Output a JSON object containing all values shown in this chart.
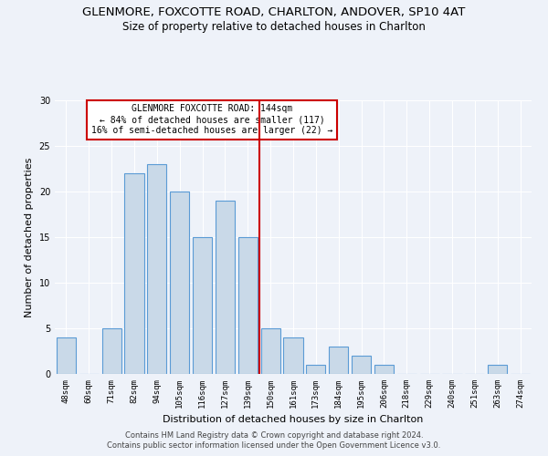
{
  "title1": "GLENMORE, FOXCOTTE ROAD, CHARLTON, ANDOVER, SP10 4AT",
  "title2": "Size of property relative to detached houses in Charlton",
  "xlabel": "Distribution of detached houses by size in Charlton",
  "ylabel": "Number of detached properties",
  "categories": [
    "48sqm",
    "60sqm",
    "71sqm",
    "82sqm",
    "94sqm",
    "105sqm",
    "116sqm",
    "127sqm",
    "139sqm",
    "150sqm",
    "161sqm",
    "173sqm",
    "184sqm",
    "195sqm",
    "206sqm",
    "218sqm",
    "229sqm",
    "240sqm",
    "251sqm",
    "263sqm",
    "274sqm"
  ],
  "values": [
    4,
    0,
    5,
    22,
    23,
    20,
    15,
    19,
    15,
    5,
    4,
    1,
    3,
    2,
    1,
    0,
    0,
    0,
    0,
    1,
    0
  ],
  "bar_color": "#c9d9e8",
  "bar_edge_color": "#5b9bd5",
  "vline_x": 8.5,
  "vline_color": "#cc0000",
  "annotation_text": "GLENMORE FOXCOTTE ROAD: 144sqm\n← 84% of detached houses are smaller (117)\n16% of semi-detached houses are larger (22) →",
  "annotation_box_color": "#ffffff",
  "annotation_box_edge": "#cc0000",
  "ylim": [
    0,
    30
  ],
  "yticks": [
    0,
    5,
    10,
    15,
    20,
    25,
    30
  ],
  "footer1": "Contains HM Land Registry data © Crown copyright and database right 2024.",
  "footer2": "Contains public sector information licensed under the Open Government Licence v3.0.",
  "bg_color": "#eef2f9",
  "plot_bg_color": "#eef2f9",
  "title1_fontsize": 9.5,
  "title2_fontsize": 8.5,
  "xlabel_fontsize": 8,
  "ylabel_fontsize": 8,
  "annot_fontsize": 7,
  "tick_fontsize": 6.5,
  "footer_fontsize": 6
}
